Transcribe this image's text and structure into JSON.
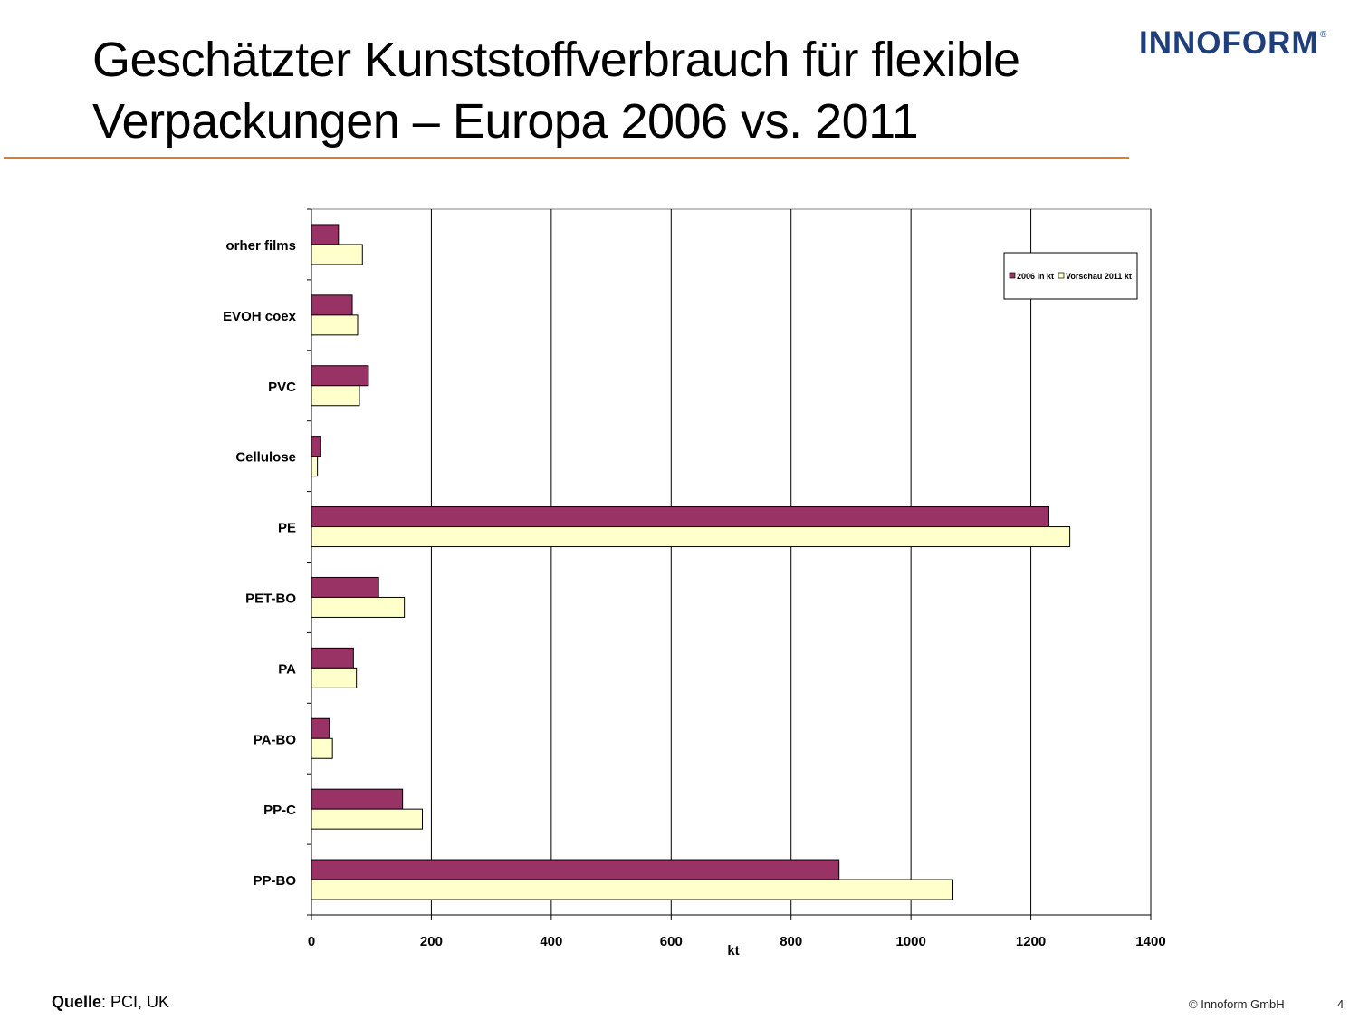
{
  "slide": {
    "title_line1": "Geschätzter Kunststoffverbrauch für flexible",
    "title_line2": "Verpackungen – Europa 2006 vs. 2011",
    "logo_text": "INNOFORM",
    "logo_reg": "®",
    "source_label": "Quelle",
    "source_text": ": PCI, UK",
    "copyright": "© Innoform GmbH",
    "page_number": "4"
  },
  "colors": {
    "accent_rule": "#e87722",
    "logo": "#1f3f7a",
    "series_2006": "#993366",
    "series_2011": "#ffffcc"
  },
  "chart_data": {
    "type": "bar",
    "orientation": "horizontal",
    "categories": [
      "orher films",
      "EVOH coex",
      "PVC",
      "Cellulose",
      "PE",
      "PET-BO",
      "PA",
      "PA-BO",
      "PP-C",
      "PP-BO"
    ],
    "series": [
      {
        "name": "2006 in kt",
        "values": [
          45,
          68,
          95,
          15,
          1230,
          112,
          70,
          30,
          152,
          880
        ]
      },
      {
        "name": "Vorschau 2011 kt",
        "values": [
          85,
          77,
          80,
          10,
          1265,
          155,
          75,
          35,
          185,
          1070
        ]
      }
    ],
    "xlabel": "kt",
    "ylabel": "",
    "xlim": [
      0,
      1400
    ],
    "xticks": [
      0,
      200,
      400,
      600,
      800,
      1000,
      1200,
      1400
    ],
    "grid": "vertical",
    "legend_position": "top-right"
  }
}
